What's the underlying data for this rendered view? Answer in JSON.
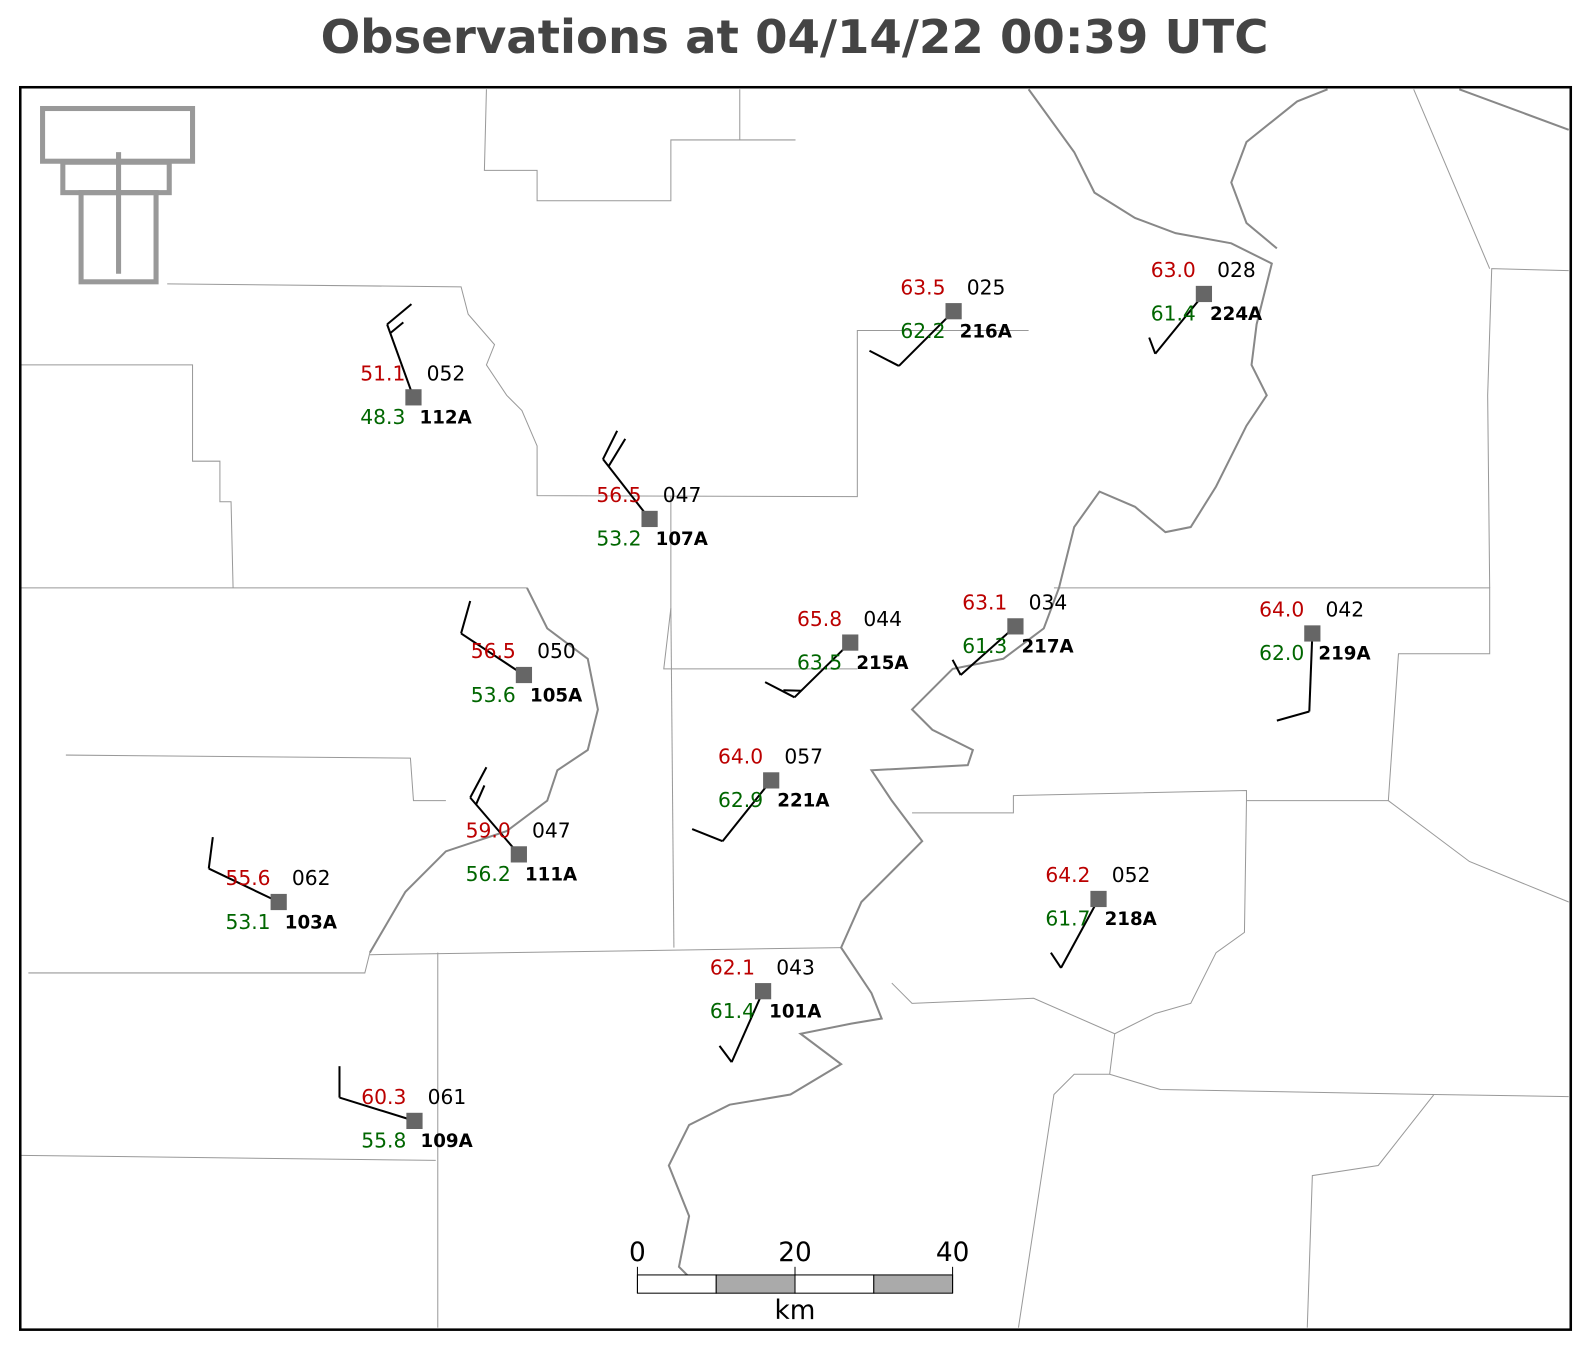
{
  "title": "Observations at 04/14/22 00:39 UTC",
  "stations": [
    {
      "id": "112A",
      "temperature": "51.1",
      "dewpoint": "48.3",
      "pressure": "052"
    },
    {
      "id": "107A",
      "temperature": "56.5",
      "dewpoint": "53.2",
      "pressure": "047"
    },
    {
      "id": "216A",
      "temperature": "63.5",
      "dewpoint": "62.2",
      "pressure": "025"
    },
    {
      "id": "224A",
      "temperature": "63.0",
      "dewpoint": "61.4",
      "pressure": "028"
    },
    {
      "id": "105A",
      "temperature": "56.5",
      "dewpoint": "53.6",
      "pressure": "050"
    },
    {
      "id": "215A",
      "temperature": "65.8",
      "dewpoint": "63.5",
      "pressure": "044"
    },
    {
      "id": "217A",
      "temperature": "63.1",
      "dewpoint": "61.3",
      "pressure": "034"
    },
    {
      "id": "219A",
      "temperature": "64.0",
      "dewpoint": "62.0",
      "pressure": "042"
    },
    {
      "id": "221A",
      "temperature": "64.0",
      "dewpoint": "62.9",
      "pressure": "057"
    },
    {
      "id": "111A",
      "temperature": "59.0",
      "dewpoint": "56.2",
      "pressure": "047"
    },
    {
      "id": "103A",
      "temperature": "55.6",
      "dewpoint": "53.1",
      "pressure": "062"
    },
    {
      "id": "218A",
      "temperature": "64.2",
      "dewpoint": "61.7",
      "pressure": "052"
    },
    {
      "id": "101A",
      "temperature": "62.1",
      "dewpoint": "61.4",
      "pressure": "043"
    },
    {
      "id": "109A",
      "temperature": "60.3",
      "dewpoint": "55.8",
      "pressure": "061"
    }
  ],
  "scale_bar": {
    "ticks": [
      0,
      20,
      40
    ],
    "unit": "km"
  }
}
